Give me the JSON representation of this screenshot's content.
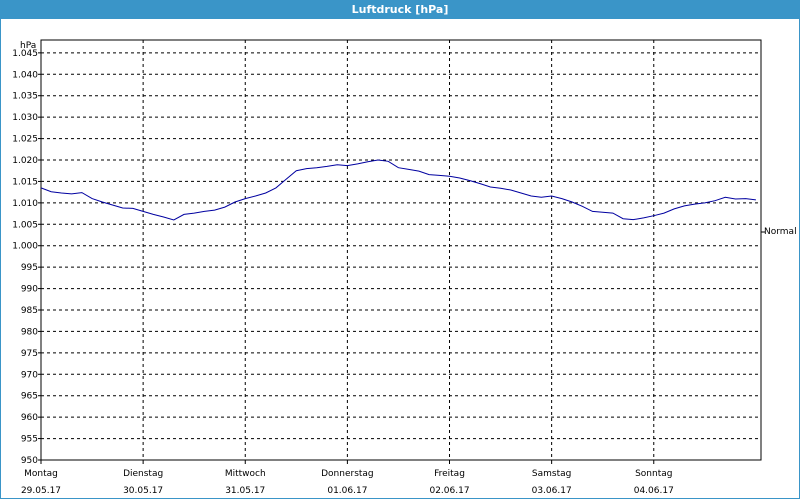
{
  "window": {
    "title": "Luftdruck [hPa]"
  },
  "colors": {
    "title_bar": "#3a95c8",
    "line": "#0000a0",
    "grid": "#000000"
  },
  "chart_data": {
    "type": "line",
    "title": "Luftdruck [hPa]",
    "ylabel": "hPa",
    "xlabel": "",
    "ylim": [
      950,
      1048
    ],
    "grid": true,
    "y_ticks": [
      950,
      955,
      960,
      965,
      970,
      975,
      980,
      985,
      990,
      995,
      1000,
      1005,
      1010,
      1015,
      1020,
      1025,
      1030,
      1035,
      1040,
      1045
    ],
    "y_tick_labels": [
      "950",
      "955",
      "960",
      "965",
      "970",
      "975",
      "980",
      "985",
      "990",
      "995",
      "1.000",
      "1.005",
      "1.010",
      "1.015",
      "1.020",
      "1.025",
      "1.030",
      "1.035",
      "1.040",
      "1.045"
    ],
    "x_range": [
      0,
      7.05
    ],
    "x_ticks": [
      {
        "day": "Montag",
        "date": "29.05.17"
      },
      {
        "day": "Dienstag",
        "date": "30.05.17"
      },
      {
        "day": "Mittwoch",
        "date": "31.05.17"
      },
      {
        "day": "Donnerstag",
        "date": "01.06.17"
      },
      {
        "day": "Freitag",
        "date": "02.06.17"
      },
      {
        "day": "Samstag",
        "date": "03.06.17"
      },
      {
        "day": "Sonntag",
        "date": "04.06.17"
      }
    ],
    "reference_line": {
      "label": "Normal",
      "value": 1003.2
    },
    "series": [
      {
        "x": [
          0,
          0.1,
          0.2,
          0.3,
          0.4,
          0.5,
          0.6,
          0.7,
          0.8,
          0.9,
          1.0,
          1.1,
          1.2,
          1.3,
          1.4,
          1.5,
          1.6,
          1.7,
          1.8,
          1.9,
          2.0,
          2.1,
          2.2,
          2.3,
          2.4,
          2.5,
          2.6,
          2.7,
          2.8,
          2.9,
          3.0,
          3.1,
          3.2,
          3.3,
          3.4,
          3.5,
          3.6,
          3.7,
          3.8,
          3.9,
          4.0,
          4.1,
          4.2,
          4.3,
          4.4,
          4.5,
          4.6,
          4.7,
          4.8,
          4.9,
          5.0,
          5.1,
          5.2,
          5.3,
          5.4,
          5.5,
          5.6,
          5.7,
          5.8,
          5.9,
          6.0,
          6.1,
          6.2,
          6.3,
          6.4,
          6.5,
          6.6,
          6.7,
          6.8,
          6.9,
          7.0
        ],
        "y": [
          1013.5,
          1012.6,
          1012.3,
          1012.1,
          1012.4,
          1011.0,
          1010.2,
          1009.5,
          1008.8,
          1008.7,
          1008.0,
          1007.3,
          1006.7,
          1006.0,
          1007.3,
          1007.6,
          1008.0,
          1008.3,
          1009.0,
          1010.2,
          1011.0,
          1011.6,
          1012.3,
          1013.5,
          1015.5,
          1017.5,
          1018.0,
          1018.2,
          1018.5,
          1018.9,
          1018.7,
          1019.1,
          1019.6,
          1020.0,
          1019.7,
          1018.2,
          1017.8,
          1017.4,
          1016.6,
          1016.4,
          1016.2,
          1015.8,
          1015.2,
          1014.5,
          1013.7,
          1013.4,
          1013.0,
          1012.3,
          1011.6,
          1011.3,
          1011.6,
          1011.0,
          1010.2,
          1009.2,
          1008.0,
          1007.8,
          1007.6,
          1006.3,
          1006.1,
          1006.5,
          1007.0,
          1007.6,
          1008.6,
          1009.3,
          1009.7,
          1010.0,
          1010.5,
          1011.3,
          1010.9,
          1011.0,
          1010.7
        ]
      }
    ]
  }
}
